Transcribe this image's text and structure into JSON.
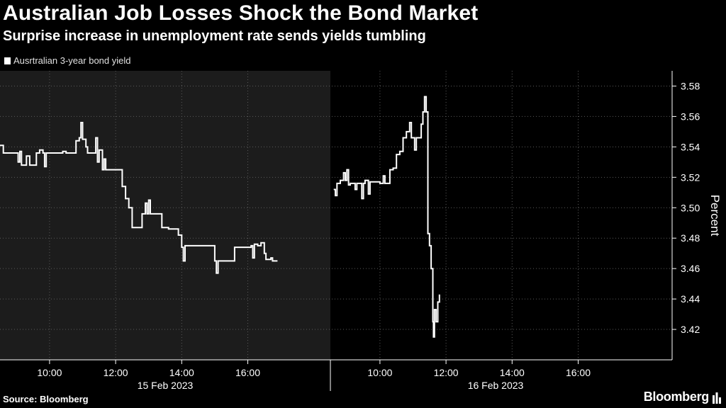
{
  "header": {
    "title": "Australian Job Losses Shock the Bond Market",
    "subtitle": "Surprise increase in unemployment rate sends yields tumbling"
  },
  "footer": {
    "source": "Source: Bloomberg",
    "brand": "Bloomberg"
  },
  "colors": {
    "background": "#000000",
    "shaded_session": "#1c1c1c",
    "line": "#ffffff",
    "grid": "#5a5a5a"
  },
  "chart_data": {
    "type": "line",
    "title": "Australian Job Losses Shock the Bond Market",
    "subtitle": "Surprise increase in unemployment rate sends yields tumbling",
    "ylabel": "Percent",
    "ylim": [
      3.4,
      3.59
    ],
    "y_ticks": [
      3.42,
      3.44,
      3.46,
      3.48,
      3.5,
      3.52,
      3.54,
      3.56,
      3.58
    ],
    "y_tick_labels": [
      "3.42",
      "3.44",
      "3.46",
      "3.48",
      "3.50",
      "3.52",
      "3.54",
      "3.56",
      "3.58"
    ],
    "y_axis_position": "right",
    "grid": true,
    "legend_position": "top-left",
    "shaded_session": "15 Feb 2023",
    "sessions": [
      {
        "date_label": "15 Feb 2023",
        "x_range": [
          8.5,
          18.5
        ],
        "x_ticks": [
          10,
          12,
          14,
          16
        ],
        "x_tick_labels": [
          "10:00",
          "12:00",
          "14:00",
          "16:00"
        ]
      },
      {
        "date_label": "16 Feb 2023",
        "x_range": [
          8.5,
          18.5
        ],
        "x_ticks": [
          10,
          12,
          14,
          16
        ],
        "x_tick_labels": [
          "10:00",
          "12:00",
          "14:00",
          "16:00"
        ]
      }
    ],
    "series": [
      {
        "name": "Ausrtralian 3-year bond yield",
        "segments": [
          {
            "session": 0,
            "points": [
              [
                8.5,
                3.541
              ],
              [
                8.6,
                3.536
              ],
              [
                9.0,
                3.536
              ],
              [
                9.05,
                3.53
              ],
              [
                9.1,
                3.537
              ],
              [
                9.15,
                3.528
              ],
              [
                9.3,
                3.534
              ],
              [
                9.4,
                3.528
              ],
              [
                9.6,
                3.536
              ],
              [
                9.7,
                3.538
              ],
              [
                9.8,
                3.536
              ],
              [
                9.85,
                3.527
              ],
              [
                9.9,
                3.536
              ],
              [
                10.3,
                3.536
              ],
              [
                10.4,
                3.537
              ],
              [
                10.5,
                3.536
              ],
              [
                10.8,
                3.544
              ],
              [
                10.9,
                3.546
              ],
              [
                10.95,
                3.556
              ],
              [
                11.0,
                3.545
              ],
              [
                11.1,
                3.54
              ],
              [
                11.15,
                3.536
              ],
              [
                11.3,
                3.536
              ],
              [
                11.4,
                3.546
              ],
              [
                11.45,
                3.53
              ],
              [
                11.5,
                3.538
              ],
              [
                11.6,
                3.525
              ],
              [
                11.65,
                3.532
              ],
              [
                11.7,
                3.525
              ],
              [
                12.1,
                3.525
              ],
              [
                12.2,
                3.514
              ],
              [
                12.3,
                3.506
              ],
              [
                12.4,
                3.5
              ],
              [
                12.5,
                3.487
              ],
              [
                12.7,
                3.487
              ],
              [
                12.8,
                3.496
              ],
              [
                12.9,
                3.503
              ],
              [
                12.95,
                3.496
              ],
              [
                13.0,
                3.505
              ],
              [
                13.05,
                3.496
              ],
              [
                13.3,
                3.496
              ],
              [
                13.4,
                3.487
              ],
              [
                13.6,
                3.486
              ],
              [
                13.8,
                3.486
              ],
              [
                13.9,
                3.482
              ],
              [
                14.0,
                3.474
              ],
              [
                14.05,
                3.465
              ],
              [
                14.1,
                3.475
              ],
              [
                14.9,
                3.475
              ],
              [
                15.0,
                3.465
              ],
              [
                15.05,
                3.457
              ],
              [
                15.1,
                3.465
              ],
              [
                15.5,
                3.465
              ],
              [
                15.6,
                3.474
              ],
              [
                16.1,
                3.475
              ],
              [
                16.15,
                3.467
              ],
              [
                16.2,
                3.476
              ],
              [
                16.3,
                3.475
              ],
              [
                16.4,
                3.477
              ],
              [
                16.5,
                3.47
              ],
              [
                16.55,
                3.466
              ],
              [
                16.7,
                3.467
              ],
              [
                16.75,
                3.465
              ],
              [
                16.9,
                3.465
              ]
            ]
          },
          {
            "session": 1,
            "points": [
              [
                8.6,
                3.512
              ],
              [
                8.65,
                3.508
              ],
              [
                8.7,
                3.516
              ],
              [
                8.8,
                3.518
              ],
              [
                8.9,
                3.523
              ],
              [
                8.95,
                3.518
              ],
              [
                9.0,
                3.525
              ],
              [
                9.05,
                3.515
              ],
              [
                9.1,
                3.516
              ],
              [
                9.25,
                3.512
              ],
              [
                9.3,
                3.516
              ],
              [
                9.4,
                3.516
              ],
              [
                9.45,
                3.506
              ],
              [
                9.5,
                3.516
              ],
              [
                9.55,
                3.518
              ],
              [
                9.65,
                3.509
              ],
              [
                9.7,
                3.517
              ],
              [
                10.0,
                3.516
              ],
              [
                10.1,
                3.521
              ],
              [
                10.15,
                3.516
              ],
              [
                10.25,
                3.516
              ],
              [
                10.3,
                3.525
              ],
              [
                10.4,
                3.526
              ],
              [
                10.5,
                3.535
              ],
              [
                10.6,
                3.537
              ],
              [
                10.7,
                3.546
              ],
              [
                10.8,
                3.55
              ],
              [
                10.9,
                3.556
              ],
              [
                10.95,
                3.546
              ],
              [
                11.0,
                3.546
              ],
              [
                11.05,
                3.538
              ],
              [
                11.1,
                3.546
              ],
              [
                11.2,
                3.546
              ],
              [
                11.25,
                3.555
              ],
              [
                11.3,
                3.563
              ],
              [
                11.35,
                3.573
              ],
              [
                11.4,
                3.563
              ],
              [
                11.45,
                3.483
              ],
              [
                11.5,
                3.475
              ],
              [
                11.55,
                3.46
              ],
              [
                11.6,
                3.425
              ],
              [
                11.62,
                3.415
              ],
              [
                11.65,
                3.433
              ],
              [
                11.7,
                3.425
              ],
              [
                11.75,
                3.438
              ],
              [
                11.8,
                3.443
              ]
            ]
          }
        ]
      }
    ]
  }
}
